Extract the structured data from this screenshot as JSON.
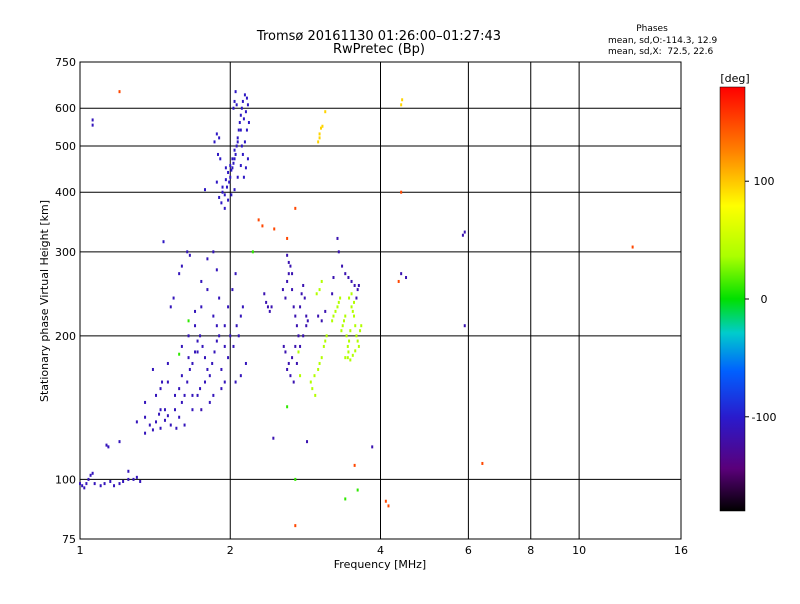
{
  "chart_data": {
    "type": "scatter",
    "title": "Tromsø 20161130 01:26:00–01:27:43",
    "subtitle": "RwPretec (Bp)",
    "xlabel": "Frequency [MHz]",
    "ylabel": "Stationary phase Virtual Height [km]",
    "x_scale": "log",
    "y_scale": "log",
    "xlim": [
      1,
      16
    ],
    "ylim": [
      75,
      750
    ],
    "x_ticks": [
      1,
      2,
      4,
      6,
      8,
      10,
      16
    ],
    "x_tick_labels": [
      "1",
      "2",
      "4",
      "6",
      "8",
      "10",
      "16"
    ],
    "y_ticks": [
      75,
      100,
      200,
      300,
      400,
      500,
      600,
      750
    ],
    "y_tick_labels": [
      "75",
      "100",
      "200",
      "300",
      "400",
      "500",
      "600",
      "750"
    ],
    "grid": true,
    "phases": {
      "heading": "Phases",
      "line_o": "mean, sd,O:-114.3, 12.9",
      "line_x": "mean, sd,X:  72.5, 22.6"
    },
    "colorbar": {
      "label": "[deg]",
      "range": [
        -180,
        180
      ],
      "ticks": [
        100,
        0,
        -100
      ],
      "tick_labels": [
        "100",
        "0",
        "-100"
      ]
    },
    "series": [
      {
        "points": [
          [
            1.0,
            98
          ],
          [
            1.01,
            97
          ],
          [
            1.02,
            96
          ],
          [
            1.03,
            98
          ],
          [
            1.04,
            100
          ],
          [
            1.05,
            102
          ],
          [
            1.06,
            103
          ],
          [
            1.07,
            98
          ],
          [
            1.1,
            97
          ],
          [
            1.12,
            98
          ],
          [
            1.15,
            99
          ],
          [
            1.17,
            97
          ],
          [
            1.2,
            98
          ],
          [
            1.22,
            99
          ],
          [
            1.25,
            100
          ],
          [
            1.28,
            100
          ],
          [
            1.3,
            101
          ],
          [
            1.32,
            99
          ],
          [
            1.06,
            567
          ],
          [
            1.06,
            553
          ],
          [
            1.13,
            118
          ],
          [
            1.14,
            117
          ],
          [
            1.2,
            120
          ],
          [
            1.25,
            104
          ]
        ],
        "phase": -110
      },
      {
        "points": [
          [
            1.35,
            125
          ],
          [
            1.38,
            130
          ],
          [
            1.4,
            127
          ],
          [
            1.42,
            132
          ],
          [
            1.45,
            128
          ],
          [
            1.48,
            133
          ],
          [
            1.5,
            136
          ],
          [
            1.52,
            130
          ],
          [
            1.55,
            140
          ],
          [
            1.58,
            135
          ],
          [
            1.6,
            145
          ],
          [
            1.62,
            150
          ],
          [
            1.64,
            160
          ],
          [
            1.66,
            170
          ],
          [
            1.68,
            175
          ],
          [
            1.7,
            185
          ],
          [
            1.72,
            195
          ],
          [
            1.74,
            200
          ],
          [
            1.76,
            190
          ],
          [
            1.78,
            180
          ],
          [
            1.8,
            170
          ],
          [
            1.82,
            165
          ],
          [
            1.84,
            175
          ],
          [
            1.86,
            185
          ],
          [
            1.88,
            195
          ],
          [
            1.9,
            200
          ],
          [
            1.45,
            155
          ],
          [
            1.5,
            160
          ],
          [
            1.55,
            150
          ],
          [
            1.6,
            165
          ],
          [
            1.65,
            180
          ],
          [
            1.7,
            210
          ],
          [
            1.75,
            230
          ],
          [
            1.8,
            250
          ],
          [
            1.85,
            220
          ],
          [
            1.9,
            240
          ],
          [
            1.4,
            170
          ],
          [
            1.5,
            175
          ],
          [
            1.6,
            190
          ],
          [
            1.65,
            200
          ],
          [
            1.7,
            225
          ],
          [
            1.75,
            260
          ],
          [
            1.8,
            290
          ],
          [
            1.35,
            145
          ],
          [
            1.42,
            150
          ],
          [
            1.48,
            140
          ],
          [
            1.56,
            128
          ],
          [
            1.62,
            130
          ],
          [
            1.68,
            140
          ],
          [
            1.72,
            150
          ],
          [
            1.78,
            160
          ],
          [
            1.85,
            150
          ],
          [
            1.92,
            170
          ],
          [
            1.95,
            190
          ],
          [
            1.98,
            180
          ],
          [
            2.0,
            200
          ],
          [
            2.03,
            190
          ],
          [
            2.06,
            210
          ],
          [
            2.08,
            200
          ],
          [
            2.1,
            220
          ],
          [
            2.12,
            230
          ],
          [
            2.15,
            175
          ],
          [
            2.1,
            165
          ],
          [
            2.05,
            160
          ],
          [
            1.95,
            210
          ],
          [
            1.98,
            230
          ],
          [
            2.02,
            250
          ],
          [
            2.05,
            270
          ],
          [
            1.85,
            300
          ],
          [
            1.88,
            210
          ],
          [
            1.92,
            155
          ],
          [
            1.58,
            270
          ],
          [
            1.6,
            280
          ],
          [
            1.64,
            300
          ],
          [
            1.66,
            295
          ],
          [
            1.52,
            230
          ],
          [
            1.54,
            240
          ],
          [
            1.35,
            135
          ],
          [
            1.45,
            140
          ],
          [
            1.3,
            132
          ],
          [
            1.68,
            150
          ],
          [
            1.74,
            155
          ],
          [
            1.82,
            145
          ],
          [
            1.95,
            160
          ],
          [
            1.88,
            275
          ],
          [
            1.72,
            185
          ],
          [
            1.58,
            155
          ],
          [
            1.44,
            137
          ],
          [
            1.46,
            160
          ]
        ],
        "phase": -110
      },
      {
        "points": [
          [
            1.9,
            390
          ],
          [
            1.93,
            400
          ],
          [
            1.95,
            395
          ],
          [
            1.97,
            410
          ],
          [
            1.99,
            420
          ],
          [
            2.0,
            430
          ],
          [
            2.01,
            445
          ],
          [
            2.02,
            450
          ],
          [
            2.03,
            460
          ],
          [
            2.04,
            470
          ],
          [
            2.05,
            480
          ],
          [
            2.06,
            500
          ],
          [
            2.07,
            520
          ],
          [
            2.08,
            540
          ],
          [
            2.09,
            560
          ],
          [
            2.1,
            580
          ],
          [
            2.11,
            600
          ],
          [
            2.12,
            620
          ],
          [
            2.14,
            640
          ],
          [
            2.16,
            630
          ],
          [
            2.17,
            610
          ],
          [
            2.15,
            590
          ],
          [
            2.13,
            570
          ],
          [
            2.1,
            540
          ],
          [
            2.07,
            510
          ],
          [
            2.04,
            490
          ],
          [
            2.02,
            470
          ],
          [
            2.0,
            455
          ],
          [
            1.98,
            440
          ],
          [
            1.96,
            425
          ],
          [
            1.93,
            410
          ],
          [
            1.92,
            380
          ],
          [
            1.95,
            370
          ],
          [
            1.98,
            385
          ],
          [
            2.01,
            395
          ],
          [
            2.04,
            405
          ],
          [
            2.07,
            430
          ],
          [
            2.1,
            455
          ],
          [
            2.12,
            480
          ],
          [
            2.14,
            510
          ],
          [
            2.16,
            540
          ],
          [
            2.18,
            560
          ],
          [
            2.05,
            650
          ],
          [
            2.04,
            620
          ],
          [
            2.03,
            600
          ],
          [
            2.06,
            610
          ],
          [
            1.88,
            530
          ],
          [
            1.9,
            520
          ],
          [
            1.86,
            510
          ],
          [
            1.89,
            480
          ],
          [
            1.91,
            470
          ],
          [
            2.11,
            500
          ],
          [
            2.13,
            430
          ],
          [
            2.15,
            450
          ],
          [
            2.17,
            470
          ],
          [
            1.88,
            420
          ],
          [
            1.96,
            450
          ],
          [
            1.78,
            405
          ],
          [
            1.47,
            315
          ]
        ],
        "phase": -105
      },
      {
        "points": [
          [
            2.55,
            250
          ],
          [
            2.58,
            240
          ],
          [
            2.6,
            260
          ],
          [
            2.62,
            270
          ],
          [
            2.64,
            280
          ],
          [
            2.66,
            250
          ],
          [
            2.68,
            230
          ],
          [
            2.7,
            220
          ],
          [
            2.72,
            210
          ],
          [
            2.74,
            200
          ],
          [
            2.76,
            230
          ],
          [
            2.78,
            245
          ],
          [
            2.8,
            255
          ],
          [
            2.82,
            240
          ],
          [
            2.84,
            220
          ],
          [
            2.86,
            215
          ],
          [
            2.7,
            190
          ],
          [
            2.66,
            180
          ],
          [
            2.62,
            175
          ],
          [
            2.58,
            185
          ],
          [
            2.56,
            190
          ],
          [
            2.6,
            170
          ],
          [
            2.64,
            165
          ],
          [
            2.68,
            160
          ],
          [
            2.72,
            175
          ],
          [
            2.76,
            190
          ],
          [
            2.8,
            200
          ],
          [
            2.84,
            210
          ],
          [
            2.34,
            245
          ],
          [
            2.36,
            235
          ],
          [
            2.4,
            225
          ],
          [
            2.42,
            230
          ],
          [
            2.38,
            230
          ],
          [
            2.6,
            295
          ],
          [
            2.62,
            285
          ],
          [
            2.66,
            270
          ],
          [
            2.85,
            120
          ],
          [
            3.0,
            220
          ],
          [
            3.05,
            215
          ],
          [
            3.1,
            225
          ],
          [
            3.2,
            245
          ],
          [
            3.22,
            265
          ],
          [
            3.3,
            300
          ],
          [
            3.35,
            280
          ],
          [
            3.4,
            270
          ],
          [
            3.45,
            265
          ],
          [
            3.5,
            260
          ],
          [
            3.55,
            255
          ],
          [
            3.6,
            250
          ],
          [
            3.62,
            255
          ],
          [
            3.58,
            240
          ],
          [
            3.28,
            320
          ],
          [
            3.85,
            117
          ],
          [
            4.5,
            265
          ],
          [
            4.4,
            270
          ],
          [
            5.9,
            330
          ],
          [
            5.85,
            325
          ],
          [
            5.9,
            210
          ],
          [
            1.75,
            140
          ],
          [
            2.44,
            122
          ]
        ],
        "phase": -115
      },
      {
        "points": [
          [
            2.9,
            160
          ],
          [
            2.95,
            165
          ],
          [
            3.0,
            170
          ],
          [
            3.02,
            175
          ],
          [
            2.96,
            150
          ],
          [
            2.92,
            155
          ],
          [
            3.05,
            180
          ],
          [
            3.08,
            190
          ],
          [
            3.1,
            195
          ],
          [
            3.12,
            200
          ],
          [
            3.2,
            215
          ],
          [
            3.22,
            220
          ],
          [
            3.25,
            225
          ],
          [
            3.28,
            230
          ],
          [
            3.3,
            235
          ],
          [
            3.32,
            240
          ],
          [
            3.34,
            205
          ],
          [
            3.36,
            210
          ],
          [
            3.38,
            215
          ],
          [
            3.4,
            220
          ],
          [
            3.42,
            200
          ],
          [
            3.44,
            190
          ],
          [
            3.45,
            185
          ],
          [
            3.46,
            195
          ],
          [
            3.48,
            205
          ],
          [
            3.5,
            230
          ],
          [
            3.52,
            225
          ],
          [
            3.54,
            220
          ],
          [
            3.56,
            210
          ],
          [
            3.58,
            200
          ],
          [
            3.6,
            195
          ],
          [
            3.62,
            190
          ],
          [
            3.64,
            205
          ],
          [
            3.66,
            210
          ],
          [
            3.4,
            180
          ],
          [
            3.44,
            180
          ],
          [
            3.48,
            178
          ],
          [
            3.52,
            182
          ],
          [
            3.56,
            186
          ],
          [
            3.46,
            240
          ],
          [
            3.5,
            245
          ],
          [
            3.54,
            235
          ],
          [
            2.74,
            185
          ],
          [
            2.76,
            165
          ],
          [
            3.02,
            250
          ],
          [
            3.05,
            260
          ],
          [
            2.98,
            245
          ]
        ],
        "phase": 40
      },
      {
        "points": [
          [
            3.0,
            510
          ],
          [
            3.02,
            520
          ],
          [
            3.04,
            545
          ],
          [
            3.06,
            550
          ],
          [
            3.02,
            530
          ],
          [
            3.1,
            590
          ],
          [
            4.4,
            610
          ],
          [
            4.42,
            625
          ]
        ],
        "phase": 95
      },
      {
        "points": [
          [
            1.2,
            650
          ],
          [
            2.32,
            340
          ],
          [
            2.28,
            350
          ],
          [
            2.45,
            335
          ],
          [
            2.6,
            320
          ],
          [
            4.35,
            260
          ],
          [
            3.55,
            107
          ],
          [
            4.1,
            90
          ],
          [
            4.15,
            88
          ],
          [
            2.7,
            80
          ],
          [
            2.7,
            370
          ],
          [
            6.4,
            108
          ],
          [
            12.8,
            307
          ],
          [
            4.4,
            400
          ]
        ],
        "phase": 150
      },
      {
        "points": [
          [
            1.65,
            215
          ],
          [
            2.7,
            100
          ],
          [
            3.6,
            95
          ],
          [
            2.22,
            300
          ],
          [
            1.58,
            183
          ],
          [
            2.6,
            142
          ],
          [
            3.4,
            91
          ]
        ],
        "phase": 10
      }
    ]
  }
}
